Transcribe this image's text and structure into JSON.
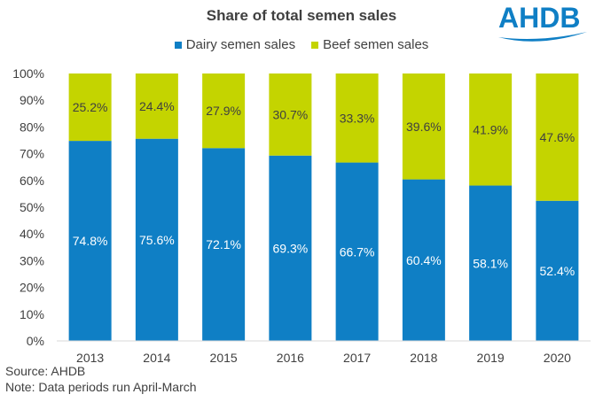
{
  "title": "Share of total semen sales",
  "logo_text": "AHDB",
  "source": "Source: AHDB",
  "note": "Note:  Data periods run April-March",
  "chart_data": {
    "type": "bar",
    "stacked": true,
    "title": "Share of total semen sales",
    "categories": [
      "2013",
      "2014",
      "2015",
      "2016",
      "2017",
      "2018",
      "2019",
      "2020"
    ],
    "series": [
      {
        "name": "Dairy semen sales",
        "color": "#0f7fc5",
        "label_color": "#ffffff",
        "values": [
          74.8,
          75.6,
          72.1,
          69.3,
          66.7,
          60.4,
          58.1,
          52.4
        ]
      },
      {
        "name": "Beef semen sales",
        "color": "#c4d400",
        "label_color": "#404040",
        "values": [
          25.2,
          24.4,
          27.9,
          30.7,
          33.3,
          39.6,
          41.9,
          47.6
        ]
      }
    ],
    "ylim": [
      0,
      100
    ],
    "yticks": [
      "0%",
      "10%",
      "20%",
      "30%",
      "40%",
      "50%",
      "60%",
      "70%",
      "80%",
      "90%",
      "100%"
    ],
    "grid": false,
    "legend_position": "top"
  }
}
